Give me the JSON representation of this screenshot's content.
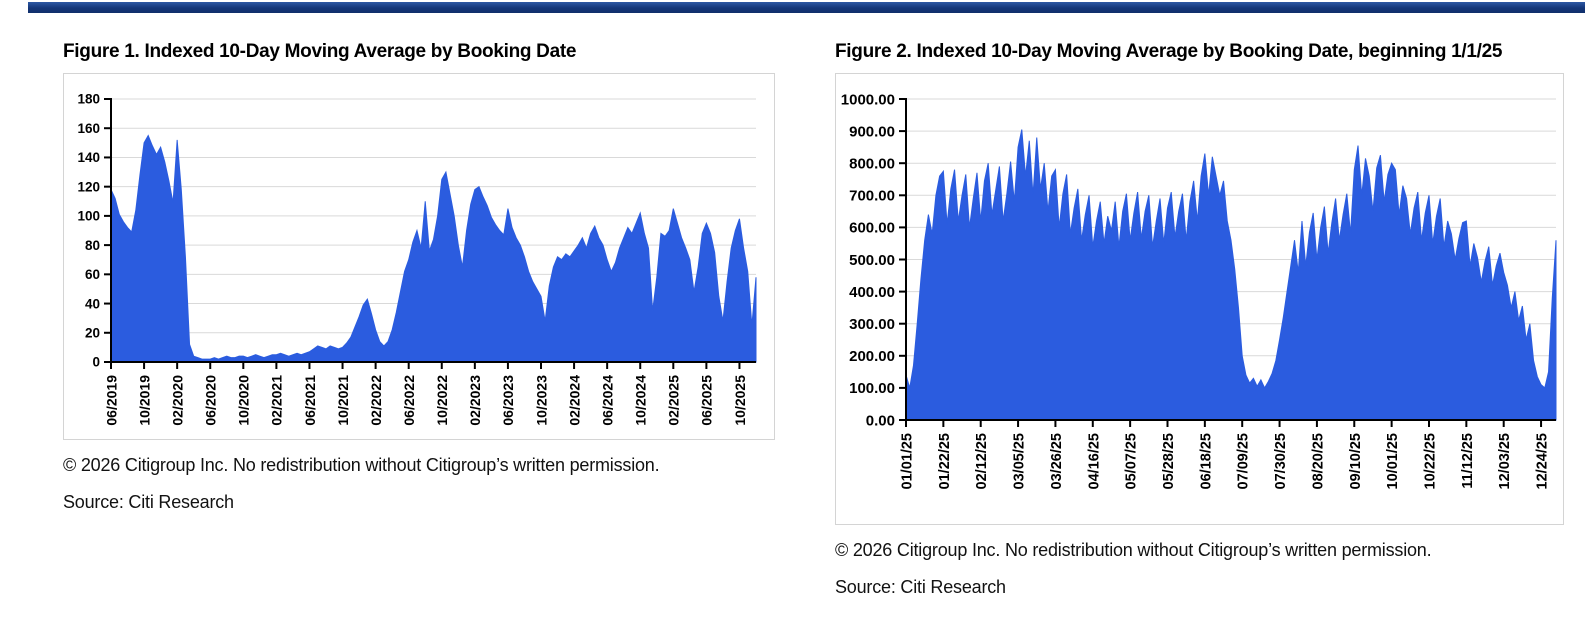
{
  "page": {
    "top_bar_color": "#143678",
    "background_color": "#ffffff",
    "chart_fill_color": "#2b5cdf"
  },
  "figures": [
    {
      "title": "Figure 1. Indexed 10-Day Moving Average by Booking Date",
      "copyright": "© 2026 Citigroup Inc. No redistribution without Citigroup’s written permission.",
      "source": "Source: Citi Research",
      "chart_data": {
        "type": "area",
        "title": "Indexed 10-Day Moving Average by Booking Date",
        "fill_color": "#2b5cdf",
        "grid": true,
        "legend": "none",
        "ylim": [
          0,
          180
        ],
        "ytick_step": 20,
        "y_decimals": 0,
        "x_tick_labels": [
          "06/2019",
          "10/2019",
          "02/2020",
          "06/2020",
          "10/2020",
          "02/2021",
          "06/2021",
          "10/2021",
          "02/2022",
          "06/2022",
          "10/2022",
          "02/2023",
          "06/2023",
          "10/2023",
          "02/2024",
          "06/2024",
          "10/2024",
          "02/2025",
          "06/2025",
          "10/2025"
        ],
        "points_per_tick_interval": 8,
        "sampling": "approx. biweekly samples read from chart, 06/2019 through 12/2025",
        "values": [
          118,
          112,
          101,
          96,
          92,
          89,
          104,
          128,
          150,
          155,
          148,
          142,
          147,
          137,
          124,
          109,
          152,
          118,
          72,
          12,
          4,
          3,
          2,
          2,
          2,
          3,
          2,
          3,
          4,
          3,
          3,
          4,
          4,
          3,
          4,
          5,
          4,
          3,
          4,
          5,
          5,
          6,
          5,
          4,
          5,
          6,
          5,
          6,
          7,
          9,
          11,
          10,
          9,
          11,
          10,
          9,
          10,
          13,
          17,
          24,
          31,
          39,
          43,
          33,
          22,
          14,
          11,
          14,
          22,
          34,
          48,
          62,
          70,
          82,
          90,
          78,
          110,
          76,
          84,
          100,
          125,
          130,
          115,
          100,
          80,
          65,
          90,
          108,
          118,
          120,
          113,
          107,
          99,
          94,
          90,
          87,
          105,
          92,
          85,
          80,
          72,
          62,
          55,
          50,
          45,
          28,
          52,
          65,
          72,
          70,
          74,
          72,
          76,
          80,
          85,
          78,
          88,
          93,
          85,
          80,
          70,
          62,
          68,
          78,
          85,
          92,
          88,
          95,
          102,
          88,
          78,
          35,
          58,
          88,
          86,
          90,
          105,
          95,
          85,
          78,
          70,
          48,
          65,
          88,
          95,
          88,
          75,
          45,
          28,
          55,
          78,
          90,
          98,
          78,
          62,
          25,
          58
        ]
      }
    },
    {
      "title": "Figure 2. Indexed 10-Day Moving Average by Booking Date, beginning 1/1/25",
      "copyright": "© 2026 Citigroup Inc. No redistribution without Citigroup’s written permission.",
      "source": "Source: Citi Research",
      "chart_data": {
        "type": "area",
        "title": "Indexed 10-Day Moving Average by Booking Date, beginning 1/1/25",
        "fill_color": "#2b5cdf",
        "grid": true,
        "legend": "none",
        "ylim": [
          0,
          1000
        ],
        "ytick_step": 100,
        "y_decimals": 2,
        "x_tick_labels": [
          "01/01/25",
          "01/22/25",
          "02/12/25",
          "03/05/25",
          "03/26/25",
          "04/16/25",
          "05/07/25",
          "05/28/25",
          "06/18/25",
          "07/09/25",
          "07/30/25",
          "08/20/25",
          "09/10/25",
          "10/01/25",
          "10/22/25",
          "11/12/25",
          "12/03/25",
          "12/24/25"
        ],
        "points_per_tick_interval": 10,
        "sampling": "approx. 2-day samples read from chart, 01/01/25 through 12/31/25 (weekly sawtooth)",
        "values": [
          140,
          100,
          170,
          300,
          440,
          560,
          640,
          580,
          700,
          760,
          775,
          610,
          720,
          780,
          620,
          700,
          765,
          600,
          690,
          770,
          620,
          745,
          800,
          640,
          715,
          790,
          620,
          705,
          805,
          680,
          850,
          905,
          760,
          870,
          700,
          880,
          720,
          800,
          650,
          760,
          780,
          600,
          705,
          765,
          580,
          660,
          720,
          560,
          640,
          700,
          540,
          620,
          680,
          550,
          635,
          590,
          680,
          540,
          650,
          705,
          560,
          645,
          710,
          565,
          650,
          700,
          540,
          620,
          690,
          550,
          660,
          710,
          570,
          650,
          705,
          560,
          680,
          745,
          620,
          760,
          830,
          700,
          820,
          760,
          700,
          745,
          620,
          560,
          470,
          350,
          200,
          140,
          115,
          130,
          105,
          125,
          100,
          120,
          145,
          185,
          250,
          320,
          400,
          480,
          560,
          460,
          620,
          480,
          585,
          645,
          500,
          600,
          665,
          520,
          615,
          690,
          560,
          640,
          705,
          580,
          780,
          855,
          700,
          815,
          760,
          650,
          785,
          825,
          680,
          765,
          800,
          780,
          640,
          730,
          690,
          580,
          660,
          710,
          560,
          645,
          700,
          550,
          635,
          690,
          540,
          620,
          580,
          500,
          565,
          615,
          620,
          480,
          550,
          505,
          430,
          495,
          540,
          420,
          480,
          520,
          460,
          420,
          350,
          400,
          310,
          355,
          250,
          300,
          185,
          135,
          110,
          100,
          150,
          380,
          560
        ]
      }
    }
  ]
}
